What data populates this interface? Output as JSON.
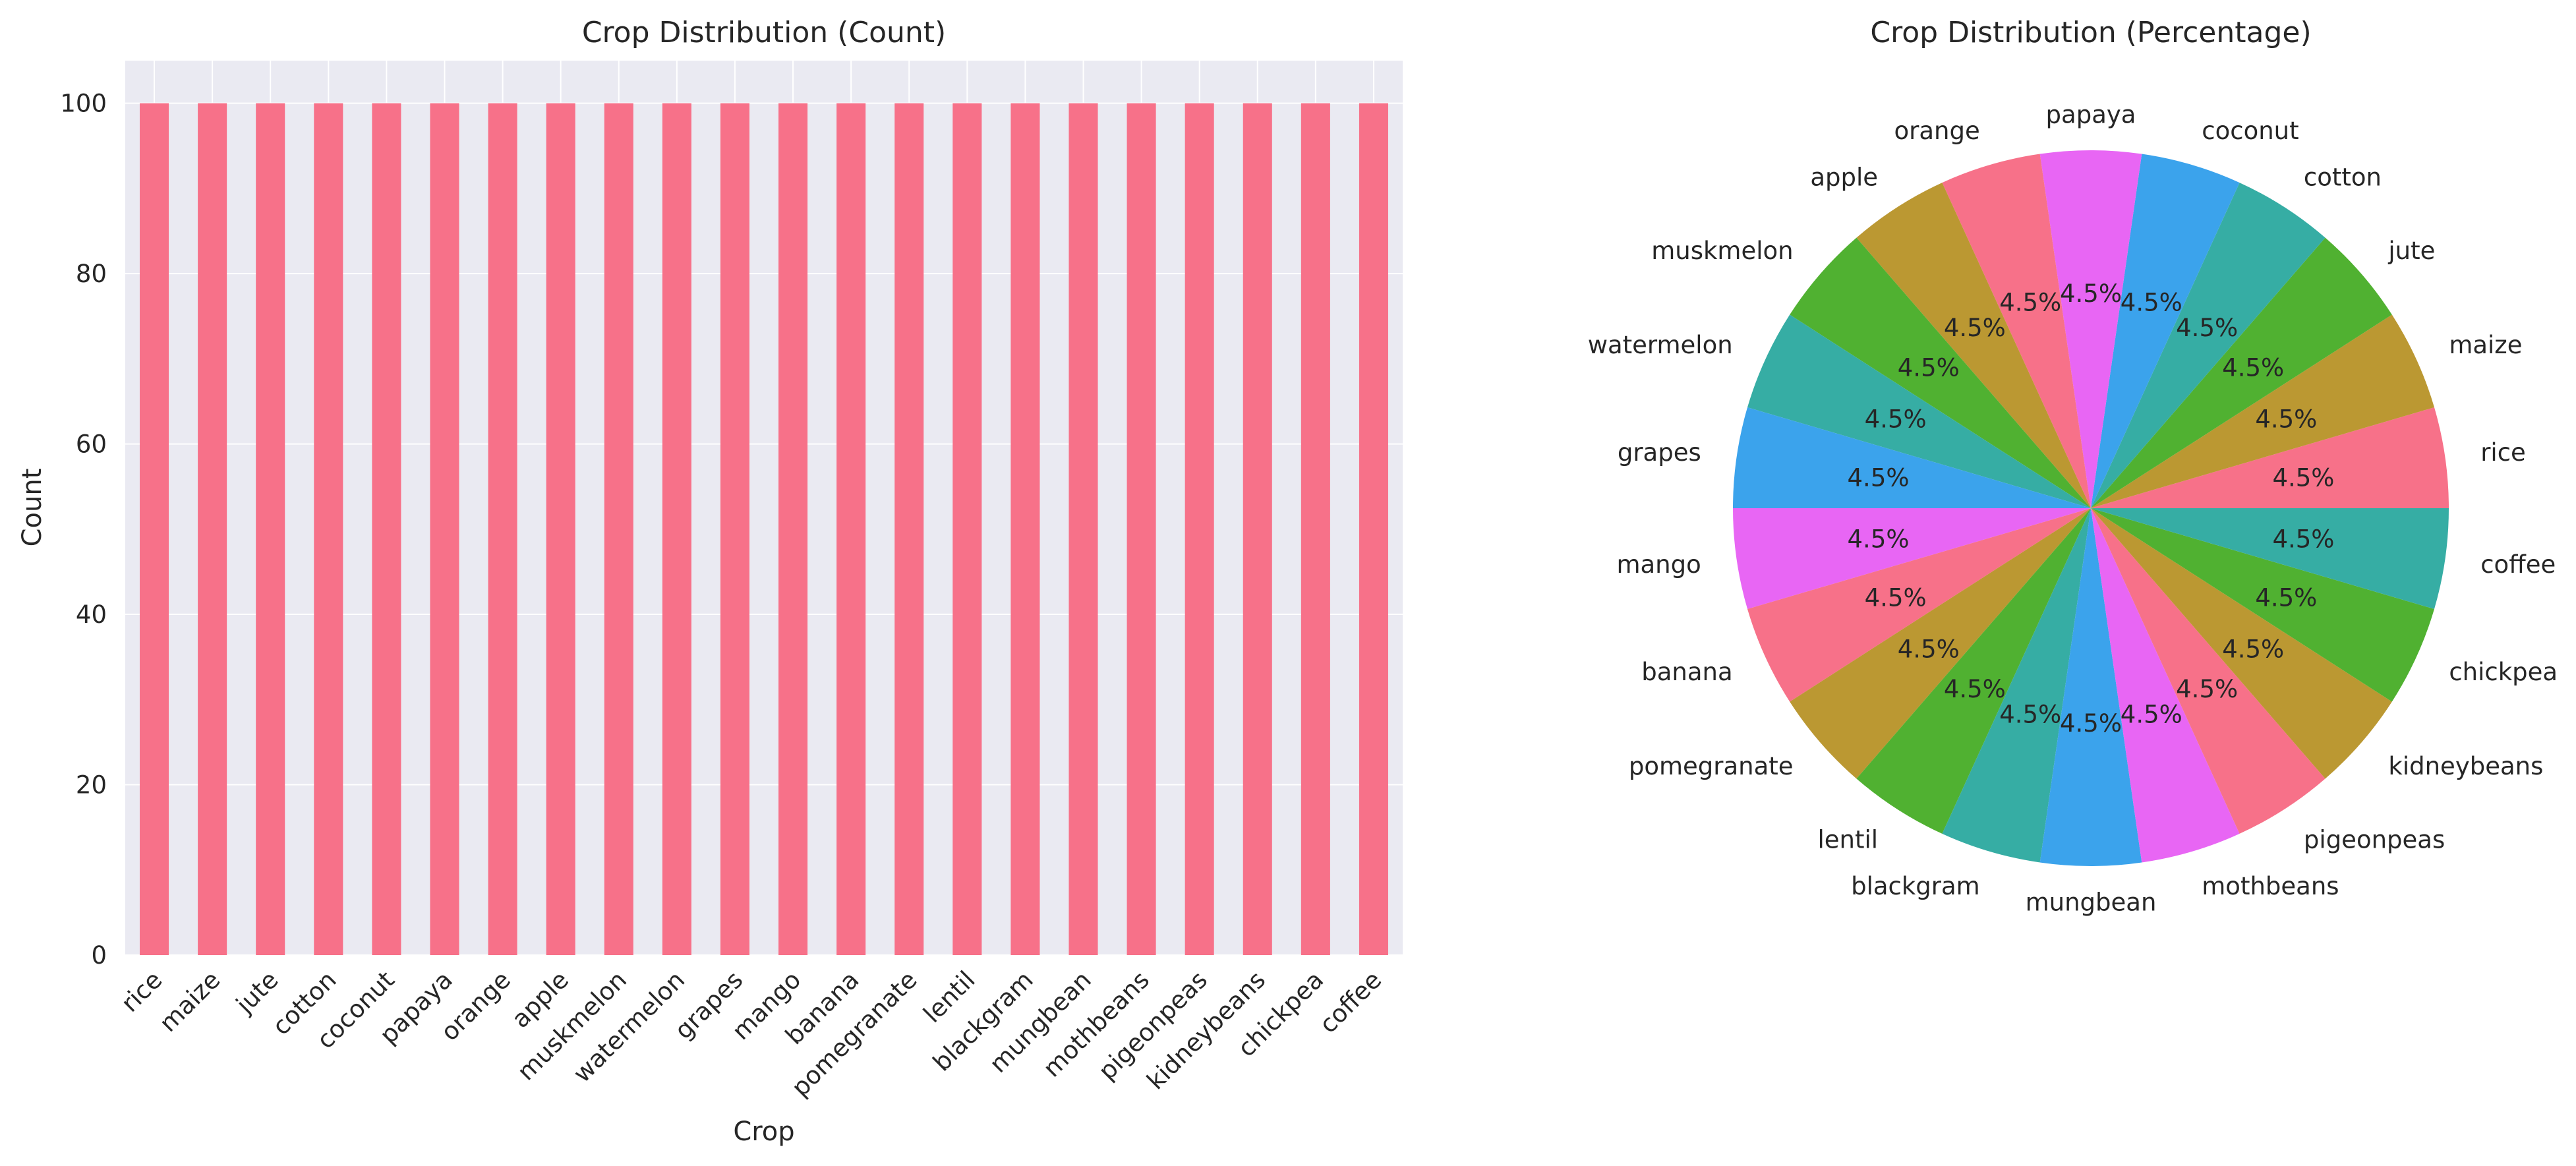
{
  "chart_data": [
    {
      "type": "bar",
      "title": "Crop Distribution (Count)",
      "xlabel": "Crop",
      "ylabel": "Count",
      "categories": [
        "rice",
        "maize",
        "jute",
        "cotton",
        "coconut",
        "papaya",
        "orange",
        "apple",
        "muskmelon",
        "watermelon",
        "grapes",
        "mango",
        "banana",
        "pomegranate",
        "lentil",
        "blackgram",
        "mungbean",
        "mothbeans",
        "pigeonpeas",
        "kidneybeans",
        "chickpea",
        "coffee"
      ],
      "values": [
        100,
        100,
        100,
        100,
        100,
        100,
        100,
        100,
        100,
        100,
        100,
        100,
        100,
        100,
        100,
        100,
        100,
        100,
        100,
        100,
        100,
        100
      ],
      "ylim": [
        0,
        105
      ],
      "yticks": [
        0,
        20,
        40,
        60,
        80,
        100
      ],
      "grid": true,
      "bar_color": "#f77189",
      "background_color": "#eaeaf2"
    },
    {
      "type": "pie",
      "title": "Crop Distribution (Percentage)",
      "labels": [
        "rice",
        "maize",
        "jute",
        "cotton",
        "coconut",
        "papaya",
        "orange",
        "apple",
        "muskmelon",
        "watermelon",
        "grapes",
        "mango",
        "banana",
        "pomegranate",
        "lentil",
        "blackgram",
        "mungbean",
        "mothbeans",
        "pigeonpeas",
        "kidneybeans",
        "chickpea",
        "coffee"
      ],
      "values": [
        100,
        100,
        100,
        100,
        100,
        100,
        100,
        100,
        100,
        100,
        100,
        100,
        100,
        100,
        100,
        100,
        100,
        100,
        100,
        100,
        100,
        100
      ],
      "percent_labels": [
        "4.5%",
        "4.5%",
        "4.5%",
        "4.5%",
        "4.5%",
        "4.5%",
        "4.5%",
        "4.5%",
        "4.5%",
        "4.5%",
        "4.5%",
        "4.5%",
        "4.5%",
        "4.5%",
        "4.5%",
        "4.5%",
        "4.5%",
        "4.5%",
        "4.5%",
        "4.5%",
        "4.5%",
        "4.5%"
      ],
      "colors": [
        "#f77189",
        "#bb9832",
        "#50b131",
        "#36ada4",
        "#3ba3ec",
        "#e866f4"
      ]
    }
  ]
}
